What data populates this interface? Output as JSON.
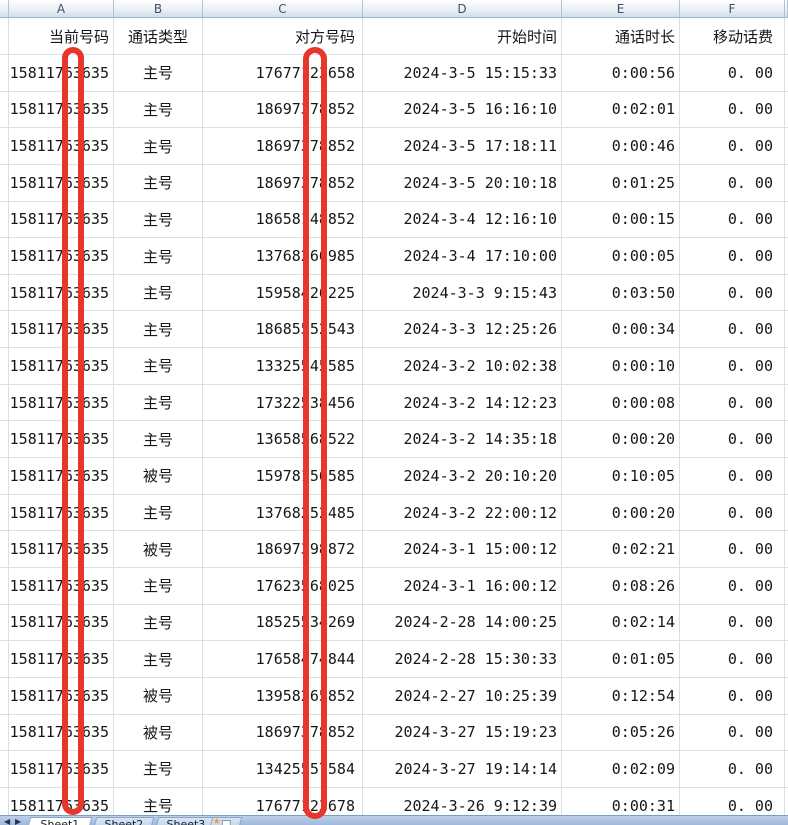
{
  "spreadsheet": {
    "column_letters": [
      "A",
      "B",
      "C",
      "D",
      "E",
      "F"
    ],
    "columns": [
      "当前号码",
      "通话类型",
      "对方号码",
      "开始时间",
      "通话时长",
      "移动话费"
    ],
    "rows": [
      [
        "15811763635",
        "主号",
        "17677123658",
        "2024-3-5 15:15:33",
        "0:00:56",
        "0. 00"
      ],
      [
        "15811763635",
        "主号",
        "18697378852",
        "2024-3-5 16:16:10",
        "0:02:01",
        "0. 00"
      ],
      [
        "15811763635",
        "主号",
        "18697378852",
        "2024-3-5 17:18:11",
        "0:00:46",
        "0. 00"
      ],
      [
        "15811763635",
        "主号",
        "18697378852",
        "2024-3-5 20:10:18",
        "0:01:25",
        "0. 00"
      ],
      [
        "15811763635",
        "主号",
        "18658148852",
        "2024-3-4 12:16:10",
        "0:00:15",
        "0. 00"
      ],
      [
        "15811763635",
        "主号",
        "13768260985",
        "2024-3-4 17:10:00",
        "0:00:05",
        "0. 00"
      ],
      [
        "15811763635",
        "主号",
        "15958426225",
        "2024-3-3 9:15:43",
        "0:03:50",
        "0. 00"
      ],
      [
        "15811763635",
        "主号",
        "18685552543",
        "2024-3-3 12:25:26",
        "0:00:34",
        "0. 00"
      ],
      [
        "15811763635",
        "主号",
        "13325545585",
        "2024-3-2 10:02:38",
        "0:00:10",
        "0. 00"
      ],
      [
        "15811763635",
        "主号",
        "17322538456",
        "2024-3-2 14:12:23",
        "0:00:08",
        "0. 00"
      ],
      [
        "15811763635",
        "主号",
        "13658568522",
        "2024-3-2 14:35:18",
        "0:00:20",
        "0. 00"
      ],
      [
        "15811763635",
        "被号",
        "15978156585",
        "2024-3-2 20:10:20",
        "0:10:05",
        "0. 00"
      ],
      [
        "15811763635",
        "主号",
        "13768252485",
        "2024-3-2 22:00:12",
        "0:00:20",
        "0. 00"
      ],
      [
        "15811763635",
        "被号",
        "18697398872",
        "2024-3-1 15:00:12",
        "0:02:21",
        "0. 00"
      ],
      [
        "15811763635",
        "主号",
        "17623568025",
        "2024-3-1 16:00:12",
        "0:08:26",
        "0. 00"
      ],
      [
        "15811763635",
        "主号",
        "18525534269",
        "2024-2-28 14:00:25",
        "0:02:14",
        "0. 00"
      ],
      [
        "15811763635",
        "主号",
        "17658474844",
        "2024-2-28 15:30:33",
        "0:01:05",
        "0. 00"
      ],
      [
        "15811763635",
        "被号",
        "13958265852",
        "2024-2-27 10:25:39",
        "0:12:54",
        "0. 00"
      ],
      [
        "15811763635",
        "被号",
        "18697378852",
        "2024-3-27 15:19:23",
        "0:05:26",
        "0. 00"
      ],
      [
        "15811763635",
        "主号",
        "13425557584",
        "2024-3-27 19:14:14",
        "0:02:09",
        "0. 00"
      ],
      [
        "15811763635",
        "主号",
        "17677123678",
        "2024-3-26 9:12:39",
        "0:00:31",
        "0. 00"
      ]
    ]
  },
  "tabbar": {
    "scroll_left": "◀",
    "scroll_right": "▶",
    "tabs": [
      {
        "label": "Sheet1",
        "active": true
      },
      {
        "label": "Sheet2",
        "active": false
      },
      {
        "label": "Sheet3",
        "active": false
      }
    ],
    "insert_star": "★"
  },
  "annotations": {
    "redaction_color": "#e8362b",
    "bars": [
      {
        "over_column": "A",
        "shape": "vertical rounded-rectangle outline"
      },
      {
        "over_column": "C",
        "shape": "vertical rounded-rectangle outline"
      }
    ]
  },
  "colors": {
    "gridline": "#d7dfe9",
    "column_header_text": "#41506a",
    "tabbar_fill": "#aec5e3",
    "cell_text": "#161616"
  }
}
